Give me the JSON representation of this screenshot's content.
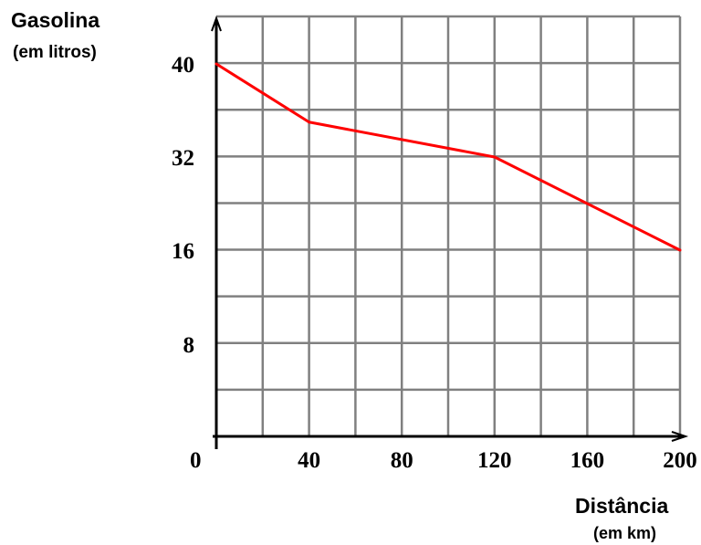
{
  "chart_data": {
    "type": "line",
    "ylabel": "Gasolina",
    "ylabel_unit": "(em litros)",
    "xlabel": "Distância",
    "xlabel_unit": "(em km)",
    "origin_label": "0",
    "x_tick_labels": [
      "40",
      "80",
      "120",
      "160",
      "200"
    ],
    "y_tick_labels": [
      "8",
      "16",
      "32",
      "40"
    ],
    "xlim": [
      0,
      200
    ],
    "series": [
      {
        "color": "#ff0000",
        "x": [
          0,
          40,
          120,
          200
        ],
        "y": [
          40,
          35,
          32,
          16
        ]
      }
    ],
    "grid": true,
    "grid_color": "#808080",
    "axis_color": "#000000"
  }
}
